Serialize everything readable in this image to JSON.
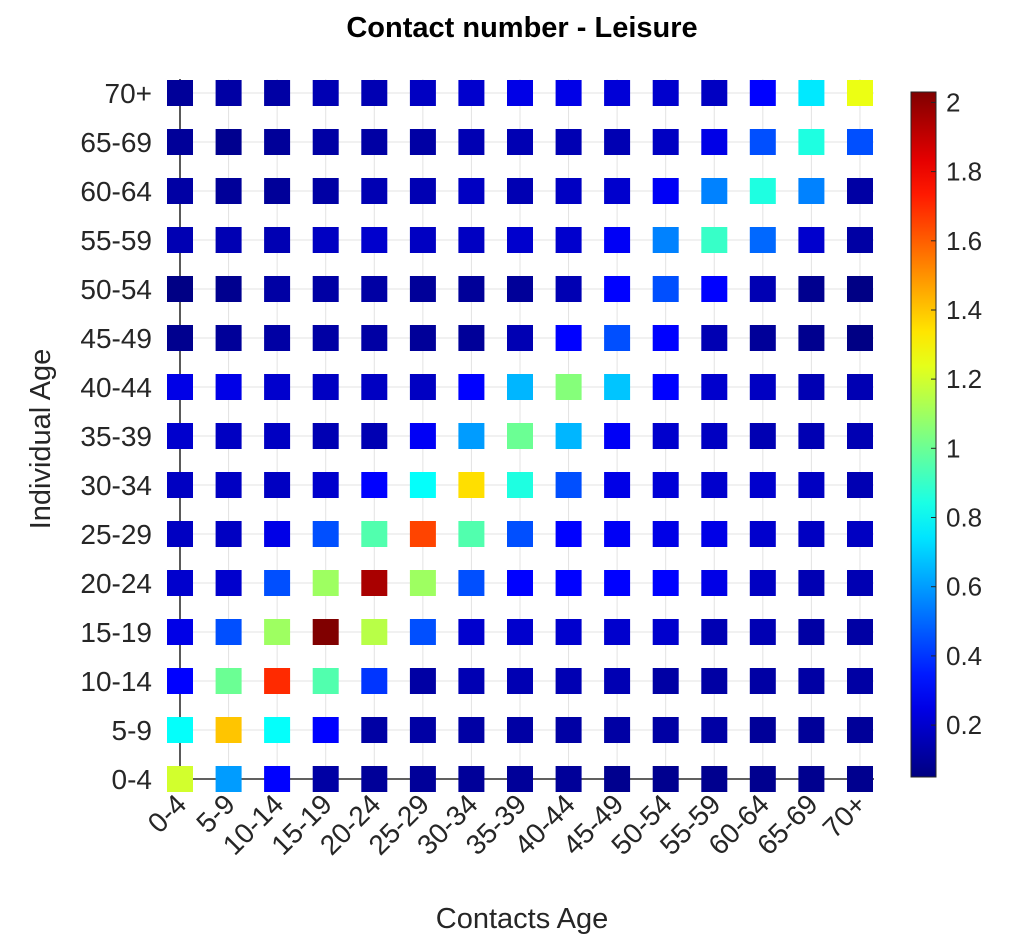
{
  "chart_data": {
    "type": "heatmap",
    "title": "Contact number - Leisure",
    "xlabel": "Contacts Age",
    "ylabel": "Individual Age",
    "x_categories": [
      "0-4",
      "5-9",
      "10-14",
      "15-19",
      "20-24",
      "25-29",
      "30-34",
      "35-39",
      "40-44",
      "45-49",
      "50-54",
      "55-59",
      "60-64",
      "65-69",
      "70+"
    ],
    "y_categories": [
      "0-4",
      "5-9",
      "10-14",
      "15-19",
      "20-24",
      "25-29",
      "30-34",
      "35-39",
      "40-44",
      "45-49",
      "50-54",
      "55-59",
      "60-64",
      "65-69",
      "70+"
    ],
    "colormap": "jet",
    "color_range": [
      0.05,
      2.03
    ],
    "colorbar_ticks": [
      "0.2",
      "0.4",
      "0.6",
      "0.8",
      "1",
      "1.2",
      "1.4",
      "1.6",
      "1.8",
      "2"
    ],
    "grid": true,
    "rows": [
      [
        1.2,
        0.6,
        0.3,
        0.12,
        0.1,
        0.1,
        0.1,
        0.1,
        0.1,
        0.08,
        0.08,
        0.08,
        0.08,
        0.08,
        0.08
      ],
      [
        0.8,
        1.4,
        0.8,
        0.3,
        0.12,
        0.12,
        0.12,
        0.12,
        0.12,
        0.12,
        0.12,
        0.12,
        0.1,
        0.1,
        0.1
      ],
      [
        0.3,
        1.0,
        1.7,
        0.95,
        0.4,
        0.12,
        0.15,
        0.15,
        0.15,
        0.15,
        0.12,
        0.12,
        0.12,
        0.12,
        0.12
      ],
      [
        0.25,
        0.45,
        1.1,
        2.03,
        1.15,
        0.45,
        0.2,
        0.2,
        0.2,
        0.2,
        0.2,
        0.15,
        0.15,
        0.12,
        0.12
      ],
      [
        0.2,
        0.2,
        0.45,
        1.1,
        1.95,
        1.1,
        0.45,
        0.3,
        0.3,
        0.3,
        0.3,
        0.25,
        0.18,
        0.15,
        0.15
      ],
      [
        0.18,
        0.18,
        0.25,
        0.45,
        0.95,
        1.65,
        0.95,
        0.45,
        0.3,
        0.28,
        0.25,
        0.25,
        0.2,
        0.18,
        0.18
      ],
      [
        0.18,
        0.18,
        0.18,
        0.2,
        0.3,
        0.8,
        1.35,
        0.85,
        0.45,
        0.25,
        0.22,
        0.2,
        0.2,
        0.18,
        0.15
      ],
      [
        0.2,
        0.18,
        0.18,
        0.15,
        0.15,
        0.28,
        0.6,
        1.0,
        0.65,
        0.28,
        0.2,
        0.18,
        0.15,
        0.15,
        0.15
      ],
      [
        0.25,
        0.25,
        0.2,
        0.18,
        0.18,
        0.18,
        0.3,
        0.65,
        1.05,
        0.68,
        0.3,
        0.2,
        0.18,
        0.15,
        0.15
      ],
      [
        0.08,
        0.1,
        0.12,
        0.12,
        0.12,
        0.1,
        0.1,
        0.15,
        0.3,
        0.45,
        0.3,
        0.15,
        0.1,
        0.08,
        0.06
      ],
      [
        0.06,
        0.08,
        0.12,
        0.12,
        0.12,
        0.1,
        0.1,
        0.1,
        0.15,
        0.3,
        0.45,
        0.3,
        0.15,
        0.08,
        0.06
      ],
      [
        0.15,
        0.15,
        0.15,
        0.18,
        0.2,
        0.18,
        0.18,
        0.2,
        0.2,
        0.28,
        0.55,
        0.9,
        0.5,
        0.2,
        0.12
      ],
      [
        0.12,
        0.1,
        0.1,
        0.12,
        0.15,
        0.15,
        0.18,
        0.15,
        0.18,
        0.2,
        0.28,
        0.55,
        0.85,
        0.55,
        0.12
      ],
      [
        0.1,
        0.08,
        0.1,
        0.12,
        0.12,
        0.12,
        0.15,
        0.15,
        0.15,
        0.15,
        0.18,
        0.25,
        0.45,
        0.85,
        0.45
      ],
      [
        0.1,
        0.12,
        0.12,
        0.15,
        0.15,
        0.18,
        0.2,
        0.25,
        0.25,
        0.22,
        0.2,
        0.18,
        0.3,
        0.75,
        1.25
      ]
    ]
  }
}
